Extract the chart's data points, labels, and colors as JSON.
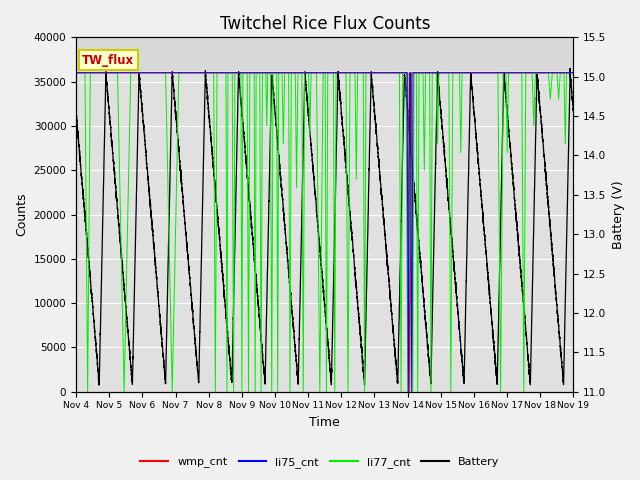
{
  "title": "Twitchel Rice Flux Counts",
  "xlabel": "Time",
  "ylabel_left": "Counts",
  "ylabel_right": "Battery (V)",
  "xlim": [
    0,
    15
  ],
  "ylim_left": [
    0,
    40000
  ],
  "ylim_right": [
    11.0,
    15.5
  ],
  "x_tick_labels": [
    "Nov 4",
    "Nov 5",
    "Nov 6",
    "Nov 7",
    "Nov 8",
    "Nov 9",
    "Nov 10",
    "Nov 11",
    "Nov 12",
    "Nov 13",
    "Nov 14",
    "Nov 15",
    "Nov 16",
    "Nov 17",
    "Nov 18",
    "Nov 19"
  ],
  "background_color": "#f0f0f0",
  "plot_bg_top": "#e8e8e8",
  "plot_bg_bottom": "#d8d8d8",
  "legend_box_color": "#ffffcc",
  "legend_box_edge": "#cccc00",
  "legend_label": "TW_flux",
  "legend_label_color": "#cc0000",
  "colors": {
    "wmp_cnt": "#ff0000",
    "li75_cnt": "#0000ff",
    "li77_cnt": "#00ee00",
    "Battery": "#000000"
  },
  "title_fontsize": 12,
  "axis_fontsize": 9,
  "tick_fontsize": 8,
  "li77_base": 36000,
  "batt_base_v": 15.05,
  "batt_min_v": 11.1,
  "batt_charge_v": 15.1
}
